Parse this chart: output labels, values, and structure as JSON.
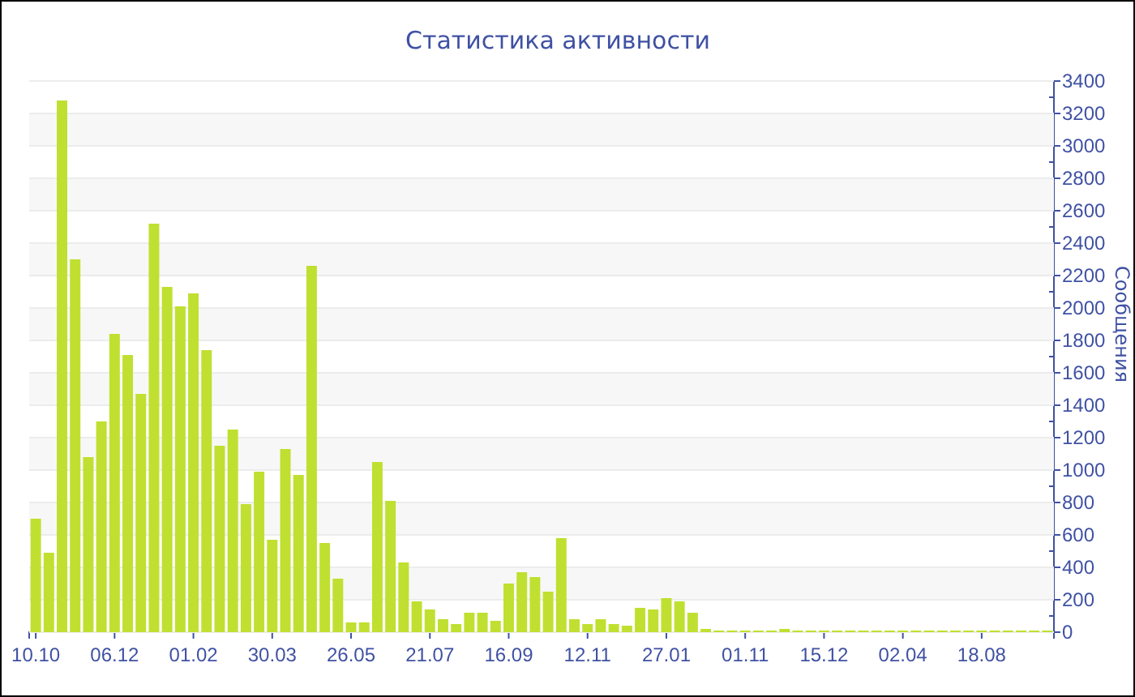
{
  "chart_data": {
    "type": "bar",
    "title": "Статистика активности",
    "ylabel": "Сообщения",
    "categories": [
      "10.10",
      null,
      null,
      null,
      null,
      null,
      "06.12",
      null,
      null,
      null,
      null,
      null,
      "01.02",
      null,
      null,
      null,
      null,
      null,
      "30.03",
      null,
      null,
      null,
      null,
      null,
      "26.05",
      null,
      null,
      null,
      null,
      null,
      "21.07",
      null,
      null,
      null,
      null,
      null,
      "16.09",
      null,
      null,
      null,
      null,
      null,
      "12.11",
      null,
      null,
      null,
      null,
      null,
      "27.01",
      null,
      null,
      null,
      null,
      null,
      "01.11",
      null,
      null,
      null,
      null,
      null,
      "15.12",
      null,
      null,
      null,
      null,
      null,
      "02.04",
      null,
      null,
      null,
      null,
      null,
      "18.08",
      null,
      null,
      null,
      null,
      null
    ],
    "values": [
      700,
      490,
      3280,
      2300,
      1080,
      1300,
      1840,
      1710,
      1470,
      2520,
      2130,
      2010,
      2090,
      1740,
      1150,
      1250,
      790,
      990,
      570,
      1130,
      970,
      2260,
      550,
      330,
      60,
      60,
      1050,
      810,
      430,
      190,
      140,
      80,
      50,
      120,
      120,
      70,
      300,
      370,
      340,
      250,
      580,
      80,
      50,
      80,
      50,
      40,
      150,
      140,
      210,
      190,
      120,
      20,
      10,
      10,
      10,
      10,
      10,
      20,
      10,
      10,
      10,
      10,
      10,
      10,
      10,
      10,
      10,
      10,
      10,
      10,
      10,
      10,
      10,
      10,
      10,
      10,
      10,
      10
    ],
    "color": "#bfe030",
    "ylim": [
      0,
      3400
    ],
    "yticks": [
      0,
      200,
      400,
      600,
      800,
      1000,
      1200,
      1400,
      1600,
      1800,
      2000,
      2200,
      2400,
      2600,
      2800,
      3000,
      3200,
      3400
    ],
    "grid": "y"
  }
}
